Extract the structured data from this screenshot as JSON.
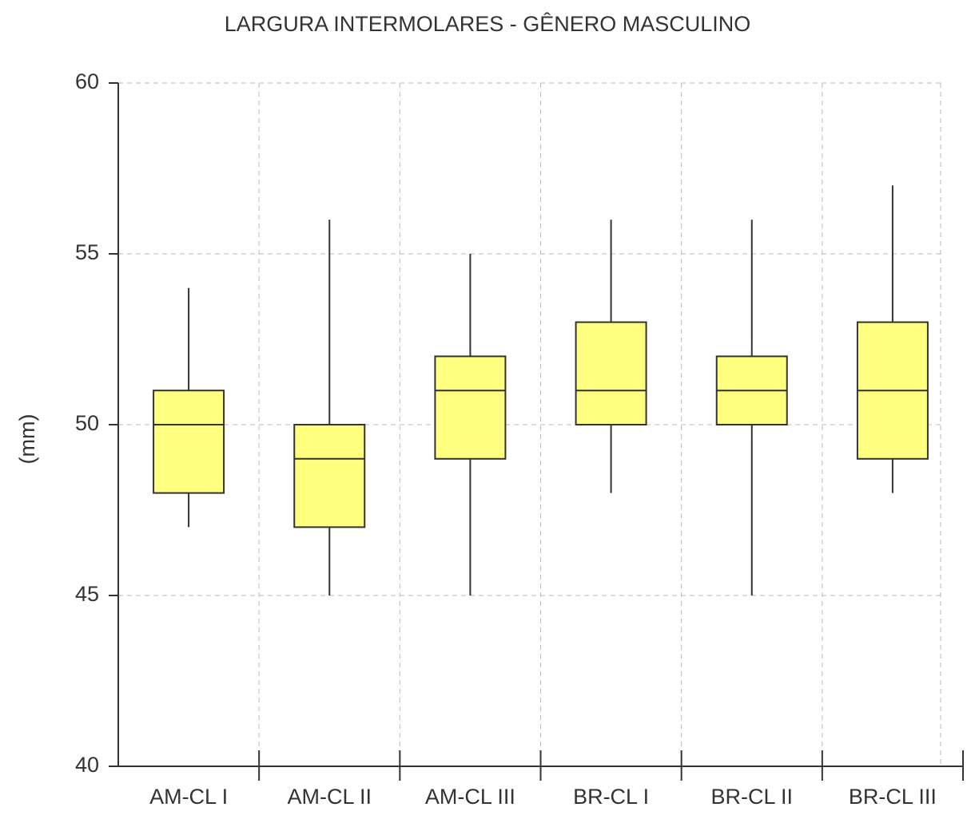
{
  "chart_data": {
    "type": "box",
    "title": "LARGURA INTERMOLARES - GÊNERO MASCULINO",
    "y_label": "(mm)",
    "categories": [
      "AM-CL I",
      "AM-CL II",
      "AM-CL III",
      "BR-CL I",
      "BR-CL II",
      "BR-CL III"
    ],
    "min": [
      47,
      45,
      45,
      48,
      45,
      48
    ],
    "q1": [
      48,
      47,
      49,
      50,
      50,
      49
    ],
    "median": [
      50,
      49,
      51,
      51,
      51,
      51
    ],
    "q3": [
      51,
      50,
      52,
      53,
      52,
      53
    ],
    "max": [
      54,
      56,
      55,
      56,
      56,
      57
    ],
    "color": "#ffff80",
    "ylim": [
      40,
      60
    ],
    "yticks": [
      40,
      45,
      50,
      55,
      60
    ],
    "grid": true
  }
}
